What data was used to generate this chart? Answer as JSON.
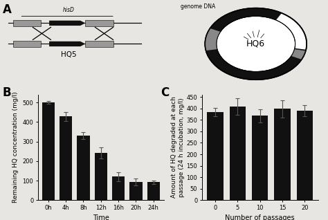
{
  "panel_B": {
    "categories": [
      "0h",
      "4h",
      "8h",
      "12h",
      "16h",
      "20h",
      "24h"
    ],
    "values": [
      500,
      428,
      330,
      242,
      120,
      93,
      92
    ],
    "errors": [
      8,
      22,
      18,
      28,
      22,
      18,
      10
    ],
    "xlabel": "Time",
    "ylabel": "Remaining HQ concentration (mg/l)",
    "ylim": [
      0,
      540
    ],
    "yticks": [
      0,
      100,
      200,
      300,
      400,
      500
    ],
    "bar_color": "#111111",
    "label": "B"
  },
  "panel_C": {
    "categories": [
      "0",
      "5",
      "10",
      "15",
      "20"
    ],
    "values": [
      385,
      408,
      368,
      398,
      390
    ],
    "errors": [
      18,
      35,
      28,
      38,
      25
    ],
    "xlabel": "Number of passages",
    "ylabel": "Amount of HQ degraded at each\npassage (24 h incubation, mg/l)",
    "ylim": [
      0,
      460
    ],
    "yticks": [
      0,
      50,
      100,
      150,
      200,
      250,
      300,
      350,
      400,
      450
    ],
    "bar_color": "#111111",
    "label": "C"
  },
  "background_color": "#e8e6e3",
  "label_fontsize": 12,
  "axis_fontsize": 6.5,
  "tick_fontsize": 6
}
